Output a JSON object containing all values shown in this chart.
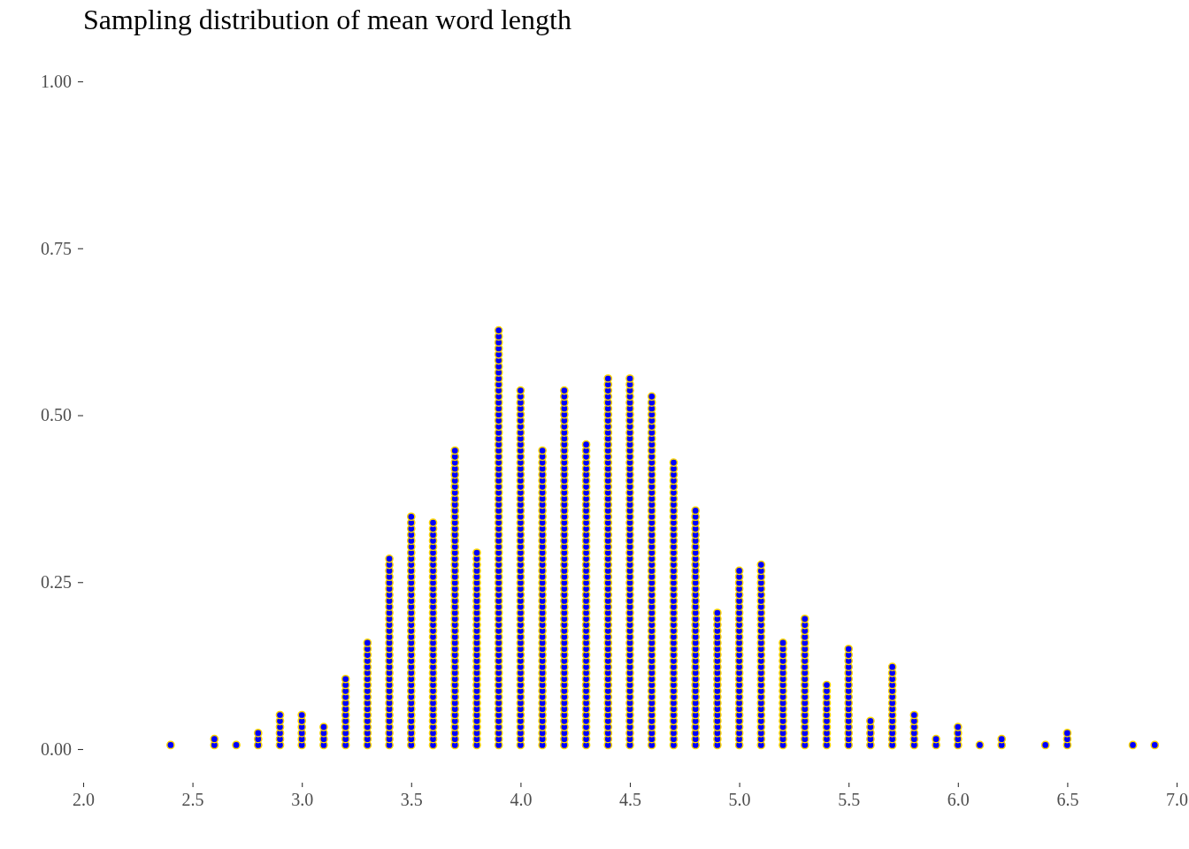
{
  "chart_data": {
    "type": "scatter",
    "title": "Sampling distribution of mean word length",
    "marker": "circle",
    "xlim": [
      2,
      7
    ],
    "xticks": [
      {
        "value": 2,
        "label": "2.0"
      },
      {
        "value": 2.5,
        "label": "2.5"
      },
      {
        "value": 3,
        "label": "3.0"
      },
      {
        "value": 3.5,
        "label": "3.5"
      },
      {
        "value": 4,
        "label": "4.0"
      },
      {
        "value": 4.5,
        "label": "4.5"
      },
      {
        "value": 5,
        "label": "5.0"
      },
      {
        "value": 5.5,
        "label": "5.5"
      },
      {
        "value": 6,
        "label": "6.0"
      },
      {
        "value": 6.5,
        "label": "6.5"
      },
      {
        "value": 7,
        "label": "7.0"
      }
    ],
    "ylim": [
      0,
      1
    ],
    "yticks": [
      {
        "value": 0,
        "label": "0.00"
      },
      {
        "value": 0.25,
        "label": "0.25"
      },
      {
        "value": 0.5,
        "label": "0.50"
      },
      {
        "value": 0.75,
        "label": "0.75"
      },
      {
        "value": 1,
        "label": "1.00"
      }
    ],
    "series": [
      {
        "color": "#0000ff",
        "x": [
          2.4
        ],
        "values": [
          0.006
        ]
      },
      {
        "color": "#0000ff",
        "x": [
          2.6,
          2.6
        ],
        "values": [
          0.006,
          0.015
        ]
      },
      {
        "color": "#0000ff",
        "x": [
          2.7
        ],
        "values": [
          0.006
        ]
      },
      {
        "color": "#0000ff",
        "x": [
          2.8,
          2.8,
          2.8
        ],
        "values": [
          0.006,
          0.015,
          0.024
        ]
      },
      {
        "color": "#0000ff",
        "x": [
          2.9,
          2.9,
          2.9,
          2.9,
          2.9,
          2.9
        ],
        "values": [
          0.006,
          0.015,
          0.024,
          0.033,
          0.042,
          0.051
        ]
      },
      {
        "color": "#0000ff",
        "x": [
          3,
          3,
          3,
          3,
          3,
          3
        ],
        "values": [
          0.006,
          0.015,
          0.024,
          0.033,
          0.042,
          0.051
        ]
      },
      {
        "color": "#0000ff",
        "x": [
          3.1,
          3.1,
          3.1,
          3.1
        ],
        "values": [
          0.006,
          0.015,
          0.024,
          0.033
        ]
      },
      {
        "color": "#0000ff",
        "x": [
          3.2,
          3.2,
          3.2,
          3.2,
          3.2,
          3.2,
          3.2,
          3.2,
          3.2,
          3.2,
          3.2,
          3.2
        ],
        "values": [
          0.006,
          0.015,
          0.024,
          0.033,
          0.042,
          0.051,
          0.06,
          0.069,
          0.078,
          0.087,
          0.096,
          0.105
        ]
      },
      {
        "color": "#0000ff",
        "x": [
          3.3,
          3.3,
          3.3,
          3.3,
          3.3,
          3.3,
          3.3,
          3.3,
          3.3,
          3.3,
          3.3,
          3.3,
          3.3,
          3.3,
          3.3,
          3.3,
          3.3,
          3.3
        ],
        "values": [
          0.006,
          0.015,
          0.024,
          0.033,
          0.042,
          0.051,
          0.06,
          0.069,
          0.078,
          0.087,
          0.096,
          0.105,
          0.114,
          0.123,
          0.132,
          0.141,
          0.15,
          0.159
        ]
      },
      {
        "color": "#0000ff",
        "x": [
          3.4,
          3.4,
          3.4,
          3.4,
          3.4,
          3.4,
          3.4,
          3.4,
          3.4,
          3.4,
          3.4,
          3.4,
          3.4,
          3.4,
          3.4,
          3.4,
          3.4,
          3.4,
          3.4,
          3.4,
          3.4,
          3.4,
          3.4,
          3.4,
          3.4,
          3.4,
          3.4,
          3.4,
          3.4,
          3.4,
          3.4,
          3.4
        ],
        "values": [
          0.006,
          0.015,
          0.024,
          0.033,
          0.042,
          0.051,
          0.06,
          0.069,
          0.078,
          0.087,
          0.096,
          0.105,
          0.114,
          0.123,
          0.132,
          0.141,
          0.15,
          0.159,
          0.168,
          0.177,
          0.186,
          0.195,
          0.204,
          0.213,
          0.222,
          0.231,
          0.24,
          0.249,
          0.258,
          0.267,
          0.276,
          0.285
        ]
      },
      {
        "color": "#0000ff",
        "x": [
          3.5,
          3.5,
          3.5,
          3.5,
          3.5,
          3.5,
          3.5,
          3.5,
          3.5,
          3.5,
          3.5,
          3.5,
          3.5,
          3.5,
          3.5,
          3.5,
          3.5,
          3.5,
          3.5,
          3.5,
          3.5,
          3.5,
          3.5,
          3.5,
          3.5,
          3.5,
          3.5,
          3.5,
          3.5,
          3.5,
          3.5,
          3.5,
          3.5,
          3.5,
          3.5,
          3.5,
          3.5,
          3.5,
          3.5
        ],
        "values": [
          0.006,
          0.015,
          0.024,
          0.033,
          0.042,
          0.051,
          0.06,
          0.069,
          0.078,
          0.087,
          0.096,
          0.105,
          0.114,
          0.123,
          0.132,
          0.141,
          0.15,
          0.159,
          0.168,
          0.177,
          0.186,
          0.195,
          0.204,
          0.213,
          0.222,
          0.231,
          0.24,
          0.249,
          0.258,
          0.267,
          0.276,
          0.285,
          0.294,
          0.303,
          0.312,
          0.321,
          0.33,
          0.339,
          0.348
        ]
      },
      {
        "color": "#0000ff",
        "x": [
          3.6,
          3.6,
          3.6,
          3.6,
          3.6,
          3.6,
          3.6,
          3.6,
          3.6,
          3.6,
          3.6,
          3.6,
          3.6,
          3.6,
          3.6,
          3.6,
          3.6,
          3.6,
          3.6,
          3.6,
          3.6,
          3.6,
          3.6,
          3.6,
          3.6,
          3.6,
          3.6,
          3.6,
          3.6,
          3.6,
          3.6,
          3.6,
          3.6,
          3.6,
          3.6,
          3.6,
          3.6,
          3.6
        ],
        "values": [
          0.006,
          0.015,
          0.024,
          0.033,
          0.042,
          0.051,
          0.06,
          0.069,
          0.078,
          0.087,
          0.096,
          0.105,
          0.114,
          0.123,
          0.132,
          0.141,
          0.15,
          0.159,
          0.168,
          0.177,
          0.186,
          0.195,
          0.204,
          0.213,
          0.222,
          0.231,
          0.24,
          0.249,
          0.258,
          0.267,
          0.276,
          0.285,
          0.294,
          0.303,
          0.312,
          0.321,
          0.33,
          0.339
        ]
      },
      {
        "color": "#0000ff",
        "x": [
          3.7,
          3.7,
          3.7,
          3.7,
          3.7,
          3.7,
          3.7,
          3.7,
          3.7,
          3.7,
          3.7,
          3.7,
          3.7,
          3.7,
          3.7,
          3.7,
          3.7,
          3.7,
          3.7,
          3.7,
          3.7,
          3.7,
          3.7,
          3.7,
          3.7,
          3.7,
          3.7,
          3.7,
          3.7,
          3.7,
          3.7,
          3.7,
          3.7,
          3.7,
          3.7,
          3.7,
          3.7,
          3.7,
          3.7,
          3.7,
          3.7,
          3.7,
          3.7,
          3.7,
          3.7,
          3.7,
          3.7,
          3.7,
          3.7,
          3.7
        ],
        "values": [
          0.006,
          0.015,
          0.024,
          0.033,
          0.042,
          0.051,
          0.06,
          0.069,
          0.078,
          0.087,
          0.096,
          0.105,
          0.114,
          0.123,
          0.132,
          0.141,
          0.15,
          0.159,
          0.168,
          0.177,
          0.186,
          0.195,
          0.204,
          0.213,
          0.222,
          0.231,
          0.24,
          0.249,
          0.258,
          0.267,
          0.276,
          0.285,
          0.294,
          0.303,
          0.312,
          0.321,
          0.33,
          0.339,
          0.348,
          0.357,
          0.366,
          0.375,
          0.384,
          0.393,
          0.402,
          0.411,
          0.42,
          0.429,
          0.438,
          0.447
        ]
      },
      {
        "color": "#0000ff",
        "x": [
          3.8,
          3.8,
          3.8,
          3.8,
          3.8,
          3.8,
          3.8,
          3.8,
          3.8,
          3.8,
          3.8,
          3.8,
          3.8,
          3.8,
          3.8,
          3.8,
          3.8,
          3.8,
          3.8,
          3.8,
          3.8,
          3.8,
          3.8,
          3.8,
          3.8,
          3.8,
          3.8,
          3.8,
          3.8,
          3.8,
          3.8,
          3.8,
          3.8
        ],
        "values": [
          0.006,
          0.015,
          0.024,
          0.033,
          0.042,
          0.051,
          0.06,
          0.069,
          0.078,
          0.087,
          0.096,
          0.105,
          0.114,
          0.123,
          0.132,
          0.141,
          0.15,
          0.159,
          0.168,
          0.177,
          0.186,
          0.195,
          0.204,
          0.213,
          0.222,
          0.231,
          0.24,
          0.249,
          0.258,
          0.267,
          0.276,
          0.285,
          0.294
        ]
      },
      {
        "color": "#0000ff",
        "x": [
          3.9,
          3.9,
          3.9,
          3.9,
          3.9,
          3.9,
          3.9,
          3.9,
          3.9,
          3.9,
          3.9,
          3.9,
          3.9,
          3.9,
          3.9,
          3.9,
          3.9,
          3.9,
          3.9,
          3.9,
          3.9,
          3.9,
          3.9,
          3.9,
          3.9,
          3.9,
          3.9,
          3.9,
          3.9,
          3.9,
          3.9,
          3.9,
          3.9,
          3.9,
          3.9,
          3.9,
          3.9,
          3.9,
          3.9,
          3.9,
          3.9,
          3.9,
          3.9,
          3.9,
          3.9,
          3.9,
          3.9,
          3.9,
          3.9,
          3.9,
          3.9,
          3.9,
          3.9,
          3.9,
          3.9,
          3.9,
          3.9,
          3.9,
          3.9,
          3.9,
          3.9,
          3.9,
          3.9,
          3.9,
          3.9,
          3.9,
          3.9,
          3.9,
          3.9,
          3.9
        ],
        "values": [
          0.006,
          0.015,
          0.024,
          0.033,
          0.042,
          0.051,
          0.06,
          0.069,
          0.078,
          0.087,
          0.096,
          0.105,
          0.114,
          0.123,
          0.132,
          0.141,
          0.15,
          0.159,
          0.168,
          0.177,
          0.186,
          0.195,
          0.204,
          0.213,
          0.222,
          0.231,
          0.24,
          0.249,
          0.258,
          0.267,
          0.276,
          0.285,
          0.294,
          0.303,
          0.312,
          0.321,
          0.33,
          0.339,
          0.348,
          0.357,
          0.366,
          0.375,
          0.384,
          0.393,
          0.402,
          0.411,
          0.42,
          0.429,
          0.438,
          0.447,
          0.456,
          0.465,
          0.474,
          0.483,
          0.492,
          0.501,
          0.51,
          0.519,
          0.528,
          0.537,
          0.546,
          0.555,
          0.564,
          0.573,
          0.582,
          0.591,
          0.6,
          0.609,
          0.618,
          0.627
        ]
      },
      {
        "color": "#0000ff",
        "x": [
          4,
          4,
          4,
          4,
          4,
          4,
          4,
          4,
          4,
          4,
          4,
          4,
          4,
          4,
          4,
          4,
          4,
          4,
          4,
          4,
          4,
          4,
          4,
          4,
          4,
          4,
          4,
          4,
          4,
          4,
          4,
          4,
          4,
          4,
          4,
          4,
          4,
          4,
          4,
          4,
          4,
          4,
          4,
          4,
          4,
          4,
          4,
          4,
          4,
          4,
          4,
          4,
          4,
          4,
          4,
          4,
          4,
          4,
          4,
          4
        ],
        "values": [
          0.006,
          0.015,
          0.024,
          0.033,
          0.042,
          0.051,
          0.06,
          0.069,
          0.078,
          0.087,
          0.096,
          0.105,
          0.114,
          0.123,
          0.132,
          0.141,
          0.15,
          0.159,
          0.168,
          0.177,
          0.186,
          0.195,
          0.204,
          0.213,
          0.222,
          0.231,
          0.24,
          0.249,
          0.258,
          0.267,
          0.276,
          0.285,
          0.294,
          0.303,
          0.312,
          0.321,
          0.33,
          0.339,
          0.348,
          0.357,
          0.366,
          0.375,
          0.384,
          0.393,
          0.402,
          0.411,
          0.42,
          0.429,
          0.438,
          0.447,
          0.456,
          0.465,
          0.474,
          0.483,
          0.492,
          0.501,
          0.51,
          0.519,
          0.528,
          0.537
        ]
      },
      {
        "color": "#0000ff",
        "x": [
          4.1,
          4.1,
          4.1,
          4.1,
          4.1,
          4.1,
          4.1,
          4.1,
          4.1,
          4.1,
          4.1,
          4.1,
          4.1,
          4.1,
          4.1,
          4.1,
          4.1,
          4.1,
          4.1,
          4.1,
          4.1,
          4.1,
          4.1,
          4.1,
          4.1,
          4.1,
          4.1,
          4.1,
          4.1,
          4.1,
          4.1,
          4.1,
          4.1,
          4.1,
          4.1,
          4.1,
          4.1,
          4.1,
          4.1,
          4.1,
          4.1,
          4.1,
          4.1,
          4.1,
          4.1,
          4.1,
          4.1,
          4.1,
          4.1,
          4.1
        ],
        "values": [
          0.006,
          0.015,
          0.024,
          0.033,
          0.042,
          0.051,
          0.06,
          0.069,
          0.078,
          0.087,
          0.096,
          0.105,
          0.114,
          0.123,
          0.132,
          0.141,
          0.15,
          0.159,
          0.168,
          0.177,
          0.186,
          0.195,
          0.204,
          0.213,
          0.222,
          0.231,
          0.24,
          0.249,
          0.258,
          0.267,
          0.276,
          0.285,
          0.294,
          0.303,
          0.312,
          0.321,
          0.33,
          0.339,
          0.348,
          0.357,
          0.366,
          0.375,
          0.384,
          0.393,
          0.402,
          0.411,
          0.42,
          0.429,
          0.438,
          0.447
        ]
      },
      {
        "color": "#0000ff",
        "x": [
          4.2,
          4.2,
          4.2,
          4.2,
          4.2,
          4.2,
          4.2,
          4.2,
          4.2,
          4.2,
          4.2,
          4.2,
          4.2,
          4.2,
          4.2,
          4.2,
          4.2,
          4.2,
          4.2,
          4.2,
          4.2,
          4.2,
          4.2,
          4.2,
          4.2,
          4.2,
          4.2,
          4.2,
          4.2,
          4.2,
          4.2,
          4.2,
          4.2,
          4.2,
          4.2,
          4.2,
          4.2,
          4.2,
          4.2,
          4.2,
          4.2,
          4.2,
          4.2,
          4.2,
          4.2,
          4.2,
          4.2,
          4.2,
          4.2,
          4.2,
          4.2,
          4.2,
          4.2,
          4.2,
          4.2,
          4.2,
          4.2,
          4.2,
          4.2,
          4.2
        ],
        "values": [
          0.006,
          0.015,
          0.024,
          0.033,
          0.042,
          0.051,
          0.06,
          0.069,
          0.078,
          0.087,
          0.096,
          0.105,
          0.114,
          0.123,
          0.132,
          0.141,
          0.15,
          0.159,
          0.168,
          0.177,
          0.186,
          0.195,
          0.204,
          0.213,
          0.222,
          0.231,
          0.24,
          0.249,
          0.258,
          0.267,
          0.276,
          0.285,
          0.294,
          0.303,
          0.312,
          0.321,
          0.33,
          0.339,
          0.348,
          0.357,
          0.366,
          0.375,
          0.384,
          0.393,
          0.402,
          0.411,
          0.42,
          0.429,
          0.438,
          0.447,
          0.456,
          0.465,
          0.474,
          0.483,
          0.492,
          0.501,
          0.51,
          0.519,
          0.528,
          0.537
        ]
      },
      {
        "color": "#0000ff",
        "x": [
          4.3,
          4.3,
          4.3,
          4.3,
          4.3,
          4.3,
          4.3,
          4.3,
          4.3,
          4.3,
          4.3,
          4.3,
          4.3,
          4.3,
          4.3,
          4.3,
          4.3,
          4.3,
          4.3,
          4.3,
          4.3,
          4.3,
          4.3,
          4.3,
          4.3,
          4.3,
          4.3,
          4.3,
          4.3,
          4.3,
          4.3,
          4.3,
          4.3,
          4.3,
          4.3,
          4.3,
          4.3,
          4.3,
          4.3,
          4.3,
          4.3,
          4.3,
          4.3,
          4.3,
          4.3,
          4.3,
          4.3,
          4.3,
          4.3,
          4.3,
          4.3
        ],
        "values": [
          0.006,
          0.015,
          0.024,
          0.033,
          0.042,
          0.051,
          0.06,
          0.069,
          0.078,
          0.087,
          0.096,
          0.105,
          0.114,
          0.123,
          0.132,
          0.141,
          0.15,
          0.159,
          0.168,
          0.177,
          0.186,
          0.195,
          0.204,
          0.213,
          0.222,
          0.231,
          0.24,
          0.249,
          0.258,
          0.267,
          0.276,
          0.285,
          0.294,
          0.303,
          0.312,
          0.321,
          0.33,
          0.339,
          0.348,
          0.357,
          0.366,
          0.375,
          0.384,
          0.393,
          0.402,
          0.411,
          0.42,
          0.429,
          0.438,
          0.447,
          0.456
        ]
      },
      {
        "color": "#0000ff",
        "x": [
          4.4,
          4.4,
          4.4,
          4.4,
          4.4,
          4.4,
          4.4,
          4.4,
          4.4,
          4.4,
          4.4,
          4.4,
          4.4,
          4.4,
          4.4,
          4.4,
          4.4,
          4.4,
          4.4,
          4.4,
          4.4,
          4.4,
          4.4,
          4.4,
          4.4,
          4.4,
          4.4,
          4.4,
          4.4,
          4.4,
          4.4,
          4.4,
          4.4,
          4.4,
          4.4,
          4.4,
          4.4,
          4.4,
          4.4,
          4.4,
          4.4,
          4.4,
          4.4,
          4.4,
          4.4,
          4.4,
          4.4,
          4.4,
          4.4,
          4.4,
          4.4,
          4.4,
          4.4,
          4.4,
          4.4,
          4.4,
          4.4,
          4.4,
          4.4,
          4.4,
          4.4,
          4.4
        ],
        "values": [
          0.006,
          0.015,
          0.024,
          0.033,
          0.042,
          0.051,
          0.06,
          0.069,
          0.078,
          0.087,
          0.096,
          0.105,
          0.114,
          0.123,
          0.132,
          0.141,
          0.15,
          0.159,
          0.168,
          0.177,
          0.186,
          0.195,
          0.204,
          0.213,
          0.222,
          0.231,
          0.24,
          0.249,
          0.258,
          0.267,
          0.276,
          0.285,
          0.294,
          0.303,
          0.312,
          0.321,
          0.33,
          0.339,
          0.348,
          0.357,
          0.366,
          0.375,
          0.384,
          0.393,
          0.402,
          0.411,
          0.42,
          0.429,
          0.438,
          0.447,
          0.456,
          0.465,
          0.474,
          0.483,
          0.492,
          0.501,
          0.51,
          0.519,
          0.528,
          0.537,
          0.546,
          0.555
        ]
      },
      {
        "color": "#0000ff",
        "x": [
          4.5,
          4.5,
          4.5,
          4.5,
          4.5,
          4.5,
          4.5,
          4.5,
          4.5,
          4.5,
          4.5,
          4.5,
          4.5,
          4.5,
          4.5,
          4.5,
          4.5,
          4.5,
          4.5,
          4.5,
          4.5,
          4.5,
          4.5,
          4.5,
          4.5,
          4.5,
          4.5,
          4.5,
          4.5,
          4.5,
          4.5,
          4.5,
          4.5,
          4.5,
          4.5,
          4.5,
          4.5,
          4.5,
          4.5,
          4.5,
          4.5,
          4.5,
          4.5,
          4.5,
          4.5,
          4.5,
          4.5,
          4.5,
          4.5,
          4.5,
          4.5,
          4.5,
          4.5,
          4.5,
          4.5,
          4.5,
          4.5,
          4.5,
          4.5,
          4.5,
          4.5,
          4.5
        ],
        "values": [
          0.006,
          0.015,
          0.024,
          0.033,
          0.042,
          0.051,
          0.06,
          0.069,
          0.078,
          0.087,
          0.096,
          0.105,
          0.114,
          0.123,
          0.132,
          0.141,
          0.15,
          0.159,
          0.168,
          0.177,
          0.186,
          0.195,
          0.204,
          0.213,
          0.222,
          0.231,
          0.24,
          0.249,
          0.258,
          0.267,
          0.276,
          0.285,
          0.294,
          0.303,
          0.312,
          0.321,
          0.33,
          0.339,
          0.348,
          0.357,
          0.366,
          0.375,
          0.384,
          0.393,
          0.402,
          0.411,
          0.42,
          0.429,
          0.438,
          0.447,
          0.456,
          0.465,
          0.474,
          0.483,
          0.492,
          0.501,
          0.51,
          0.519,
          0.528,
          0.537,
          0.546,
          0.555
        ]
      },
      {
        "color": "#0000ff",
        "x": [
          4.6,
          4.6,
          4.6,
          4.6,
          4.6,
          4.6,
          4.6,
          4.6,
          4.6,
          4.6,
          4.6,
          4.6,
          4.6,
          4.6,
          4.6,
          4.6,
          4.6,
          4.6,
          4.6,
          4.6,
          4.6,
          4.6,
          4.6,
          4.6,
          4.6,
          4.6,
          4.6,
          4.6,
          4.6,
          4.6,
          4.6,
          4.6,
          4.6,
          4.6,
          4.6,
          4.6,
          4.6,
          4.6,
          4.6,
          4.6,
          4.6,
          4.6,
          4.6,
          4.6,
          4.6,
          4.6,
          4.6,
          4.6,
          4.6,
          4.6,
          4.6,
          4.6,
          4.6,
          4.6,
          4.6,
          4.6,
          4.6,
          4.6,
          4.6
        ],
        "values": [
          0.006,
          0.015,
          0.024,
          0.033,
          0.042,
          0.051,
          0.06,
          0.069,
          0.078,
          0.087,
          0.096,
          0.105,
          0.114,
          0.123,
          0.132,
          0.141,
          0.15,
          0.159,
          0.168,
          0.177,
          0.186,
          0.195,
          0.204,
          0.213,
          0.222,
          0.231,
          0.24,
          0.249,
          0.258,
          0.267,
          0.276,
          0.285,
          0.294,
          0.303,
          0.312,
          0.321,
          0.33,
          0.339,
          0.348,
          0.357,
          0.366,
          0.375,
          0.384,
          0.393,
          0.402,
          0.411,
          0.42,
          0.429,
          0.438,
          0.447,
          0.456,
          0.465,
          0.474,
          0.483,
          0.492,
          0.501,
          0.51,
          0.519,
          0.528
        ]
      },
      {
        "color": "#0000ff",
        "x": [
          4.7,
          4.7,
          4.7,
          4.7,
          4.7,
          4.7,
          4.7,
          4.7,
          4.7,
          4.7,
          4.7,
          4.7,
          4.7,
          4.7,
          4.7,
          4.7,
          4.7,
          4.7,
          4.7,
          4.7,
          4.7,
          4.7,
          4.7,
          4.7,
          4.7,
          4.7,
          4.7,
          4.7,
          4.7,
          4.7,
          4.7,
          4.7,
          4.7,
          4.7,
          4.7,
          4.7,
          4.7,
          4.7,
          4.7,
          4.7,
          4.7,
          4.7,
          4.7,
          4.7,
          4.7,
          4.7,
          4.7,
          4.7
        ],
        "values": [
          0.006,
          0.015,
          0.024,
          0.033,
          0.042,
          0.051,
          0.06,
          0.069,
          0.078,
          0.087,
          0.096,
          0.105,
          0.114,
          0.123,
          0.132,
          0.141,
          0.15,
          0.159,
          0.168,
          0.177,
          0.186,
          0.195,
          0.204,
          0.213,
          0.222,
          0.231,
          0.24,
          0.249,
          0.258,
          0.267,
          0.276,
          0.285,
          0.294,
          0.303,
          0.312,
          0.321,
          0.33,
          0.339,
          0.348,
          0.357,
          0.366,
          0.375,
          0.384,
          0.393,
          0.402,
          0.411,
          0.42,
          0.429
        ]
      },
      {
        "color": "#0000ff",
        "x": [
          4.8,
          4.8,
          4.8,
          4.8,
          4.8,
          4.8,
          4.8,
          4.8,
          4.8,
          4.8,
          4.8,
          4.8,
          4.8,
          4.8,
          4.8,
          4.8,
          4.8,
          4.8,
          4.8,
          4.8,
          4.8,
          4.8,
          4.8,
          4.8,
          4.8,
          4.8,
          4.8,
          4.8,
          4.8,
          4.8,
          4.8,
          4.8,
          4.8,
          4.8,
          4.8,
          4.8,
          4.8,
          4.8,
          4.8,
          4.8
        ],
        "values": [
          0.006,
          0.015,
          0.024,
          0.033,
          0.042,
          0.051,
          0.06,
          0.069,
          0.078,
          0.087,
          0.096,
          0.105,
          0.114,
          0.123,
          0.132,
          0.141,
          0.15,
          0.159,
          0.168,
          0.177,
          0.186,
          0.195,
          0.204,
          0.213,
          0.222,
          0.231,
          0.24,
          0.249,
          0.258,
          0.267,
          0.276,
          0.285,
          0.294,
          0.303,
          0.312,
          0.321,
          0.33,
          0.339,
          0.348,
          0.357
        ]
      },
      {
        "color": "#0000ff",
        "x": [
          4.9,
          4.9,
          4.9,
          4.9,
          4.9,
          4.9,
          4.9,
          4.9,
          4.9,
          4.9,
          4.9,
          4.9,
          4.9,
          4.9,
          4.9,
          4.9,
          4.9,
          4.9,
          4.9,
          4.9,
          4.9,
          4.9,
          4.9
        ],
        "values": [
          0.006,
          0.015,
          0.024,
          0.033,
          0.042,
          0.051,
          0.06,
          0.069,
          0.078,
          0.087,
          0.096,
          0.105,
          0.114,
          0.123,
          0.132,
          0.141,
          0.15,
          0.159,
          0.168,
          0.177,
          0.186,
          0.195,
          0.204
        ]
      },
      {
        "color": "#0000ff",
        "x": [
          5,
          5,
          5,
          5,
          5,
          5,
          5,
          5,
          5,
          5,
          5,
          5,
          5,
          5,
          5,
          5,
          5,
          5,
          5,
          5,
          5,
          5,
          5,
          5,
          5,
          5,
          5,
          5,
          5,
          5
        ],
        "values": [
          0.006,
          0.015,
          0.024,
          0.033,
          0.042,
          0.051,
          0.06,
          0.069,
          0.078,
          0.087,
          0.096,
          0.105,
          0.114,
          0.123,
          0.132,
          0.141,
          0.15,
          0.159,
          0.168,
          0.177,
          0.186,
          0.195,
          0.204,
          0.213,
          0.222,
          0.231,
          0.24,
          0.249,
          0.258,
          0.267
        ]
      },
      {
        "color": "#0000ff",
        "x": [
          5.1,
          5.1,
          5.1,
          5.1,
          5.1,
          5.1,
          5.1,
          5.1,
          5.1,
          5.1,
          5.1,
          5.1,
          5.1,
          5.1,
          5.1,
          5.1,
          5.1,
          5.1,
          5.1,
          5.1,
          5.1,
          5.1,
          5.1,
          5.1,
          5.1,
          5.1,
          5.1,
          5.1,
          5.1,
          5.1,
          5.1
        ],
        "values": [
          0.006,
          0.015,
          0.024,
          0.033,
          0.042,
          0.051,
          0.06,
          0.069,
          0.078,
          0.087,
          0.096,
          0.105,
          0.114,
          0.123,
          0.132,
          0.141,
          0.15,
          0.159,
          0.168,
          0.177,
          0.186,
          0.195,
          0.204,
          0.213,
          0.222,
          0.231,
          0.24,
          0.249,
          0.258,
          0.267,
          0.276
        ]
      },
      {
        "color": "#0000ff",
        "x": [
          5.2,
          5.2,
          5.2,
          5.2,
          5.2,
          5.2,
          5.2,
          5.2,
          5.2,
          5.2,
          5.2,
          5.2,
          5.2,
          5.2,
          5.2,
          5.2,
          5.2,
          5.2
        ],
        "values": [
          0.006,
          0.015,
          0.024,
          0.033,
          0.042,
          0.051,
          0.06,
          0.069,
          0.078,
          0.087,
          0.096,
          0.105,
          0.114,
          0.123,
          0.132,
          0.141,
          0.15,
          0.159
        ]
      },
      {
        "color": "#0000ff",
        "x": [
          5.3,
          5.3,
          5.3,
          5.3,
          5.3,
          5.3,
          5.3,
          5.3,
          5.3,
          5.3,
          5.3,
          5.3,
          5.3,
          5.3,
          5.3,
          5.3,
          5.3,
          5.3,
          5.3,
          5.3,
          5.3,
          5.3
        ],
        "values": [
          0.006,
          0.015,
          0.024,
          0.033,
          0.042,
          0.051,
          0.06,
          0.069,
          0.078,
          0.087,
          0.096,
          0.105,
          0.114,
          0.123,
          0.132,
          0.141,
          0.15,
          0.159,
          0.168,
          0.177,
          0.186,
          0.195
        ]
      },
      {
        "color": "#0000ff",
        "x": [
          5.4,
          5.4,
          5.4,
          5.4,
          5.4,
          5.4,
          5.4,
          5.4,
          5.4,
          5.4,
          5.4
        ],
        "values": [
          0.006,
          0.015,
          0.024,
          0.033,
          0.042,
          0.051,
          0.06,
          0.069,
          0.078,
          0.087,
          0.096
        ]
      },
      {
        "color": "#0000ff",
        "x": [
          5.5,
          5.5,
          5.5,
          5.5,
          5.5,
          5.5,
          5.5,
          5.5,
          5.5,
          5.5,
          5.5,
          5.5,
          5.5,
          5.5,
          5.5,
          5.5,
          5.5
        ],
        "values": [
          0.006,
          0.015,
          0.024,
          0.033,
          0.042,
          0.051,
          0.06,
          0.069,
          0.078,
          0.087,
          0.096,
          0.105,
          0.114,
          0.123,
          0.132,
          0.141,
          0.15
        ]
      },
      {
        "color": "#0000ff",
        "x": [
          5.6,
          5.6,
          5.6,
          5.6,
          5.6
        ],
        "values": [
          0.006,
          0.015,
          0.024,
          0.033,
          0.042
        ]
      },
      {
        "color": "#0000ff",
        "x": [
          5.7,
          5.7,
          5.7,
          5.7,
          5.7,
          5.7,
          5.7,
          5.7,
          5.7,
          5.7,
          5.7,
          5.7,
          5.7,
          5.7
        ],
        "values": [
          0.006,
          0.015,
          0.024,
          0.033,
          0.042,
          0.051,
          0.06,
          0.069,
          0.078,
          0.087,
          0.096,
          0.105,
          0.114,
          0.123
        ]
      },
      {
        "color": "#0000ff",
        "x": [
          5.8,
          5.8,
          5.8,
          5.8,
          5.8,
          5.8
        ],
        "values": [
          0.006,
          0.015,
          0.024,
          0.033,
          0.042,
          0.051
        ]
      },
      {
        "color": "#0000ff",
        "x": [
          5.9,
          5.9
        ],
        "values": [
          0.006,
          0.015
        ]
      },
      {
        "color": "#0000ff",
        "x": [
          6,
          6,
          6,
          6
        ],
        "values": [
          0.006,
          0.015,
          0.024,
          0.033
        ]
      },
      {
        "color": "#0000ff",
        "x": [
          6.1
        ],
        "values": [
          0.006
        ]
      },
      {
        "color": "#0000ff",
        "x": [
          6.2,
          6.2
        ],
        "values": [
          0.006,
          0.015
        ]
      },
      {
        "color": "#0000ff",
        "x": [
          6.4
        ],
        "values": [
          0.006
        ]
      },
      {
        "color": "#0000ff",
        "x": [
          6.5,
          6.5,
          6.5
        ],
        "values": [
          0.006,
          0.015,
          0.024
        ]
      },
      {
        "color": "#0000ff",
        "x": [
          6.8
        ],
        "values": [
          0.006
        ]
      },
      {
        "color": "#0000ff",
        "x": [
          6.9
        ],
        "values": [
          0.006
        ]
      }
    ]
  }
}
